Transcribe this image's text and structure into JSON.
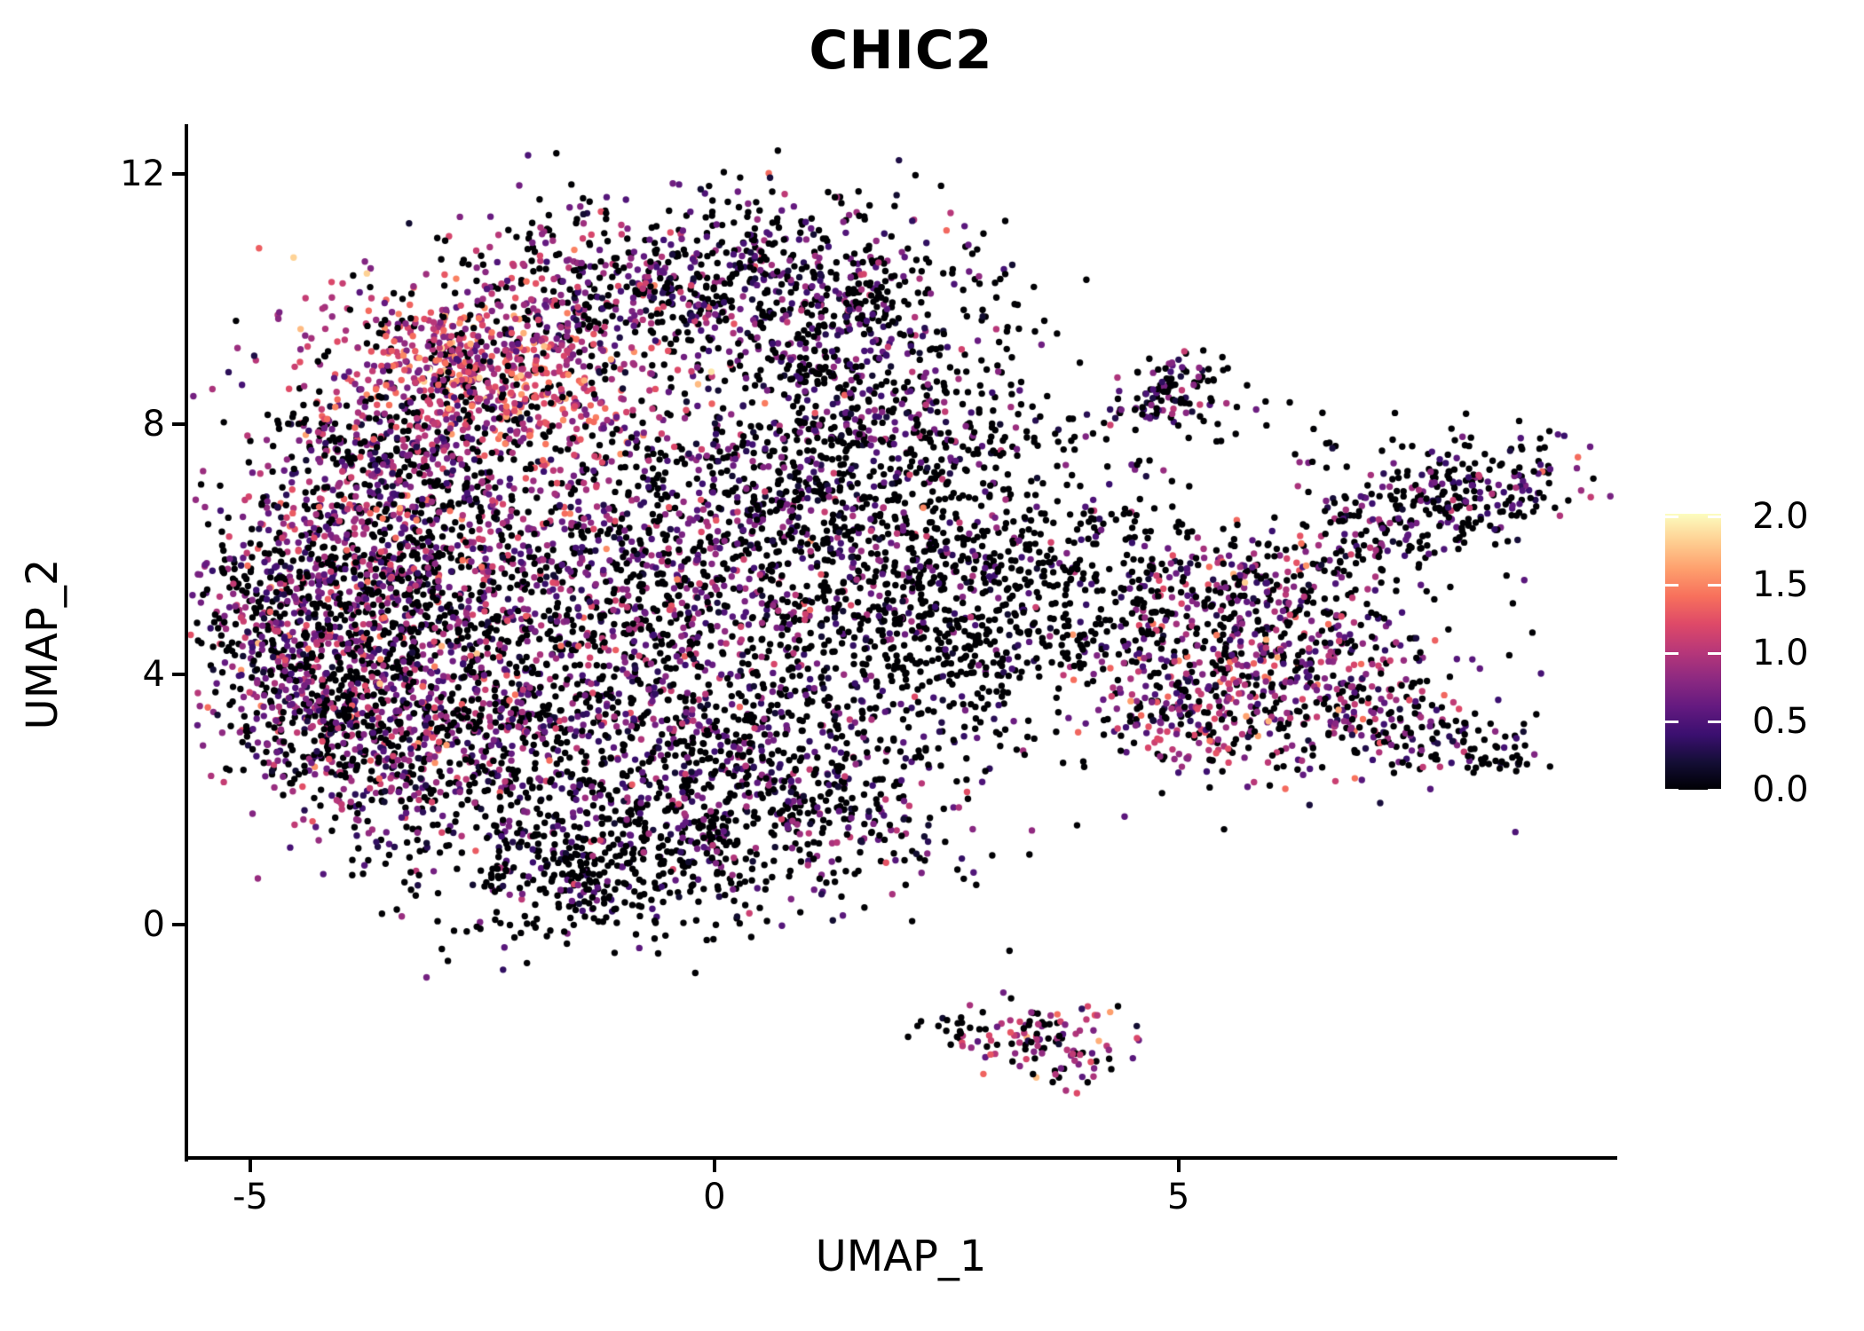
{
  "title": "CHIC2",
  "axes": {
    "x_label": "UMAP_1",
    "y_label": "UMAP_2",
    "x_ticks": [
      {
        "value": -5,
        "label": "-5"
      },
      {
        "value": 0,
        "label": "0"
      },
      {
        "value": 5,
        "label": "5"
      }
    ],
    "y_ticks": [
      {
        "value": 12,
        "label": "12"
      },
      {
        "value": 8,
        "label": "8"
      },
      {
        "value": 4,
        "label": "4"
      },
      {
        "value": 0,
        "label": "0"
      }
    ]
  },
  "colorbar": {
    "min": 0.0,
    "max": 2.02,
    "ticks": [
      {
        "value": 0.0,
        "label": "0.0"
      },
      {
        "value": 0.5,
        "label": "0.5"
      },
      {
        "value": 1.0,
        "label": "1.0"
      },
      {
        "value": 1.5,
        "label": "1.5"
      },
      {
        "value": 2.0,
        "label": "2.0"
      }
    ],
    "magma_stops": [
      [
        0.0,
        "#000004"
      ],
      [
        0.1,
        "#140e36"
      ],
      [
        0.2,
        "#3b0f70"
      ],
      [
        0.3,
        "#641a80"
      ],
      [
        0.4,
        "#8c2981"
      ],
      [
        0.5,
        "#b73779"
      ],
      [
        0.6,
        "#de4968"
      ],
      [
        0.7,
        "#f7705c"
      ],
      [
        0.8,
        "#fe9f6d"
      ],
      [
        0.9,
        "#fecf92"
      ],
      [
        1.0,
        "#fcfdbf"
      ]
    ]
  },
  "chart_data": {
    "type": "scatter",
    "title": "CHIC2",
    "xlabel": "UMAP_1",
    "ylabel": "UMAP_2",
    "xlim": [
      -5.69,
      9.71
    ],
    "ylim": [
      -3.73,
      12.79
    ],
    "legend_position": "right",
    "grid": false,
    "color_domain": [
      0.0,
      2.0
    ],
    "point_radius_px": 3.7,
    "seed": 20240,
    "clusters": [
      {
        "name": "left-far",
        "cx": -4.7,
        "cy": 4.7,
        "sx": 0.5,
        "sy": 1.1,
        "rot": 15,
        "n": 380,
        "p0": 0.44,
        "mu": 0.75,
        "sd": 0.33
      },
      {
        "name": "left-lobe",
        "cx": -3.6,
        "cy": 5.2,
        "sx": 0.85,
        "sy": 1.5,
        "rot": 0,
        "n": 850,
        "p0": 0.44,
        "mu": 0.75,
        "sd": 0.33
      },
      {
        "name": "left-lobe-hot",
        "cx": -3.7,
        "cy": 6.1,
        "sx": 0.55,
        "sy": 0.9,
        "rot": 20,
        "n": 240,
        "p0": 0.33,
        "mu": 0.85,
        "sd": 0.35
      },
      {
        "name": "upper-left-hot-band",
        "cx": -2.45,
        "cy": 8.85,
        "sx": 1.0,
        "sy": 0.62,
        "rot": -32,
        "n": 700,
        "p0": 0.15,
        "mu": 1.1,
        "sd": 0.32
      },
      {
        "name": "upper-left-outer",
        "cx": -3.3,
        "cy": 7.6,
        "sx": 0.7,
        "sy": 0.8,
        "rot": 0,
        "n": 340,
        "p0": 0.44,
        "mu": 0.75,
        "sd": 0.33
      },
      {
        "name": "top-dome-left",
        "cx": -1.2,
        "cy": 10.15,
        "sx": 0.8,
        "sy": 0.72,
        "rot": 0,
        "n": 380,
        "p0": 0.44,
        "mu": 0.75,
        "sd": 0.33
      },
      {
        "name": "top-dome-right",
        "cx": 0.6,
        "cy": 10.2,
        "sx": 0.95,
        "sy": 0.8,
        "rot": 0,
        "n": 460,
        "p0": 0.6,
        "mu": 0.6,
        "sd": 0.28
      },
      {
        "name": "top-right-edge",
        "cx": 1.7,
        "cy": 9.6,
        "sx": 0.6,
        "sy": 0.9,
        "rot": -20,
        "n": 270,
        "p0": 0.6,
        "mu": 0.6,
        "sd": 0.28
      },
      {
        "name": "center",
        "cx": -1.2,
        "cy": 5.4,
        "sx": 1.45,
        "sy": 1.35,
        "rot": 0,
        "n": 1150,
        "p0": 0.44,
        "mu": 0.75,
        "sd": 0.33
      },
      {
        "name": "center-right-dark",
        "cx": 0.8,
        "cy": 6.6,
        "sx": 1.05,
        "sy": 1.25,
        "rot": 0,
        "n": 650,
        "p0": 0.6,
        "mu": 0.6,
        "sd": 0.28
      },
      {
        "name": "right-shelf",
        "cx": 2.0,
        "cy": 7.9,
        "sx": 0.75,
        "sy": 0.5,
        "rot": 0,
        "n": 200,
        "p0": 0.6,
        "mu": 0.6,
        "sd": 0.28
      },
      {
        "name": "right-edge-dark",
        "cx": 2.2,
        "cy": 5.0,
        "sx": 0.75,
        "sy": 1.25,
        "rot": 0,
        "n": 460,
        "p0": 0.8,
        "mu": 0.5,
        "sd": 0.25
      },
      {
        "name": "right-fringe",
        "cx": 3.3,
        "cy": 5.3,
        "sx": 0.7,
        "sy": 1.1,
        "rot": 0,
        "n": 220,
        "p0": 0.8,
        "mu": 0.5,
        "sd": 0.25
      },
      {
        "name": "lower-mid",
        "cx": -0.7,
        "cy": 2.7,
        "sx": 1.5,
        "sy": 0.95,
        "rot": 0,
        "n": 800,
        "p0": 0.6,
        "mu": 0.6,
        "sd": 0.28
      },
      {
        "name": "lower-left",
        "cx": -3.2,
        "cy": 3.0,
        "sx": 0.85,
        "sy": 0.85,
        "rot": 0,
        "n": 420,
        "p0": 0.44,
        "mu": 0.75,
        "sd": 0.33
      },
      {
        "name": "bottom-tip",
        "cx": -1.4,
        "cy": 0.9,
        "sx": 0.9,
        "sy": 0.55,
        "rot": 0,
        "n": 380,
        "p0": 0.8,
        "mu": 0.5,
        "sd": 0.25
      },
      {
        "name": "bottom-right-lobe",
        "cx": 0.9,
        "cy": 1.9,
        "sx": 0.9,
        "sy": 0.8,
        "rot": 0,
        "n": 340,
        "p0": 0.6,
        "mu": 0.6,
        "sd": 0.28
      },
      {
        "name": "left-bottom-edge",
        "cx": -4.2,
        "cy": 3.3,
        "sx": 0.45,
        "sy": 0.6,
        "rot": 0,
        "n": 140,
        "p0": 0.44,
        "mu": 0.75,
        "sd": 0.33
      },
      {
        "name": "scatter-upper-mid",
        "cx": 3.1,
        "cy": 9.3,
        "sx": 0.5,
        "sy": 0.6,
        "rot": 0,
        "n": 14,
        "p0": 0.8,
        "mu": 0.5,
        "sd": 0.25
      },
      {
        "name": "mini-cluster-top",
        "cx": 4.9,
        "cy": 8.5,
        "sx": 0.36,
        "sy": 0.27,
        "rot": 35,
        "n": 115,
        "p0": 0.6,
        "mu": 0.6,
        "sd": 0.28
      },
      {
        "name": "top-right-cluster",
        "cx": 8.0,
        "cy": 6.9,
        "sx": 0.78,
        "sy": 0.38,
        "rot": 20,
        "n": 280,
        "p0": 0.6,
        "mu": 0.6,
        "sd": 0.28
      },
      {
        "name": "top-right-spur",
        "cx": 7.1,
        "cy": 6.1,
        "sx": 0.35,
        "sy": 0.3,
        "rot": 0,
        "n": 60,
        "p0": 0.6,
        "mu": 0.6,
        "sd": 0.28
      },
      {
        "name": "bridge-sparse",
        "cx": 4.1,
        "cy": 5.6,
        "sx": 0.7,
        "sy": 1.0,
        "rot": 0,
        "n": 160,
        "p0": 0.8,
        "mu": 0.5,
        "sd": 0.25
      },
      {
        "name": "right-mid-upper",
        "cx": 5.6,
        "cy": 5.4,
        "sx": 0.6,
        "sy": 0.45,
        "rot": 0,
        "n": 210,
        "p0": 0.44,
        "mu": 0.75,
        "sd": 0.33
      },
      {
        "name": "right-mid-main",
        "cx": 6.0,
        "cy": 3.9,
        "sx": 1.0,
        "sy": 0.68,
        "rot": -10,
        "n": 470,
        "p0": 0.33,
        "mu": 0.85,
        "sd": 0.35
      },
      {
        "name": "right-mid-left",
        "cx": 5.1,
        "cy": 3.4,
        "sx": 0.45,
        "sy": 0.5,
        "rot": 0,
        "n": 150,
        "p0": 0.33,
        "mu": 0.85,
        "sd": 0.35
      },
      {
        "name": "right-tail",
        "cx": 7.5,
        "cy": 3.1,
        "sx": 0.6,
        "sy": 0.33,
        "rot": -25,
        "n": 120,
        "p0": 0.6,
        "mu": 0.6,
        "sd": 0.28
      },
      {
        "name": "tail-end-clump",
        "cx": 8.5,
        "cy": 2.65,
        "sx": 0.22,
        "sy": 0.12,
        "rot": 0,
        "n": 22,
        "p0": 0.85,
        "mu": 0.45,
        "sd": 0.2
      },
      {
        "name": "right-scatter",
        "cx": 6.6,
        "cy": 5.0,
        "sx": 1.1,
        "sy": 0.9,
        "rot": 0,
        "n": 110,
        "p0": 0.8,
        "mu": 0.5,
        "sd": 0.25
      },
      {
        "name": "bottom-cluster",
        "cx": 3.55,
        "cy": -1.85,
        "sx": 0.48,
        "sy": 0.3,
        "rot": -10,
        "n": 120,
        "p0": 0.33,
        "mu": 0.85,
        "sd": 0.35
      },
      {
        "name": "bottom-cluster-tail",
        "cx": 2.75,
        "cy": -1.6,
        "sx": 0.3,
        "sy": 0.1,
        "rot": 0,
        "n": 15,
        "p0": 0.8,
        "mu": 0.5,
        "sd": 0.25
      },
      {
        "name": "scatter-above-topright",
        "cx": 5.9,
        "cy": 7.8,
        "sx": 0.8,
        "sy": 0.5,
        "rot": 0,
        "n": 30,
        "p0": 0.8,
        "mu": 0.5,
        "sd": 0.25
      },
      {
        "name": "gap-scatter",
        "cx": 3.3,
        "cy": 7.9,
        "sx": 0.5,
        "sy": 0.35,
        "rot": 0,
        "n": 25,
        "p0": 0.8,
        "mu": 0.5,
        "sd": 0.25
      }
    ]
  }
}
